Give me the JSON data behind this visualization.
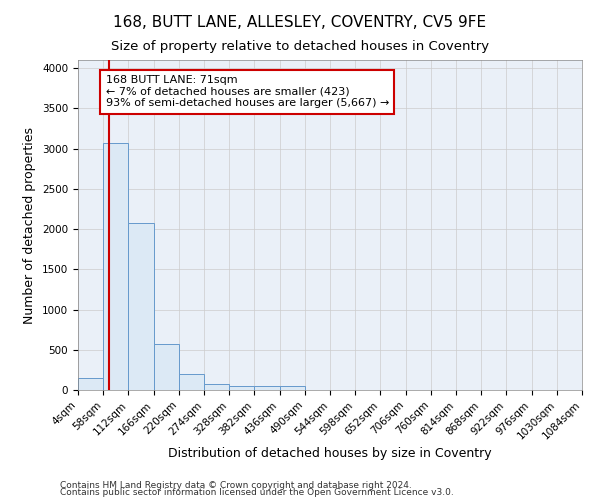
{
  "title": "168, BUTT LANE, ALLESLEY, COVENTRY, CV5 9FE",
  "subtitle": "Size of property relative to detached houses in Coventry",
  "xlabel": "Distribution of detached houses by size in Coventry",
  "ylabel": "Number of detached properties",
  "footnote1": "Contains HM Land Registry data © Crown copyright and database right 2024.",
  "footnote2": "Contains public sector information licensed under the Open Government Licence v3.0.",
  "bin_edges": [
    4,
    58,
    112,
    166,
    220,
    274,
    328,
    382,
    436,
    490,
    544,
    598,
    652,
    706,
    760,
    814,
    868,
    922,
    976,
    1030,
    1084
  ],
  "bin_labels": [
    "4sqm",
    "58sqm",
    "112sqm",
    "166sqm",
    "220sqm",
    "274sqm",
    "328sqm",
    "382sqm",
    "436sqm",
    "490sqm",
    "544sqm",
    "598sqm",
    "652sqm",
    "706sqm",
    "760sqm",
    "814sqm",
    "868sqm",
    "922sqm",
    "976sqm",
    "1030sqm",
    "1084sqm"
  ],
  "counts": [
    150,
    3070,
    2070,
    570,
    200,
    80,
    55,
    50,
    50,
    0,
    0,
    0,
    0,
    0,
    0,
    0,
    0,
    0,
    0,
    0
  ],
  "bar_facecolor": "#dce9f5",
  "bar_edgecolor": "#6699cc",
  "grid_color": "#cccccc",
  "property_line_x": 71,
  "property_line_color": "#cc0000",
  "annotation_text": "168 BUTT LANE: 71sqm\n← 7% of detached houses are smaller (423)\n93% of semi-detached houses are larger (5,667) →",
  "annotation_box_color": "#cc0000",
  "annotation_text_color": "#000000",
  "ylim": [
    0,
    4100
  ],
  "yticks": [
    0,
    500,
    1000,
    1500,
    2000,
    2500,
    3000,
    3500,
    4000
  ],
  "bg_color": "#ffffff",
  "axes_bg_color": "#eaf0f8",
  "title_fontsize": 11,
  "subtitle_fontsize": 9.5,
  "axis_label_fontsize": 9,
  "tick_fontsize": 7.5,
  "footnote_fontsize": 6.5
}
